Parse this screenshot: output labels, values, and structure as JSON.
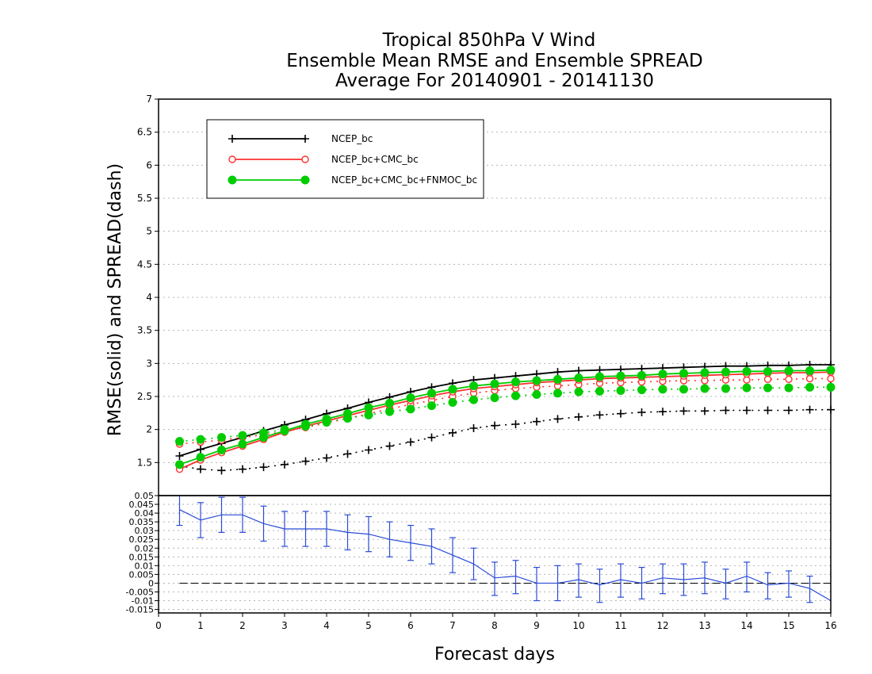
{
  "chart_data": [
    {
      "type": "line",
      "title": [
        "Tropical 850hPa V Wind",
        "Ensemble Mean RMSE and Ensemble SPREAD",
        "Average For 20140901 - 20141130"
      ],
      "ylabel": "RMSE(solid) and SPREAD(dash)",
      "ylim": [
        1.0,
        7.0
      ],
      "yticks": [
        "1.5",
        "2",
        "2.5",
        "3",
        "3.5",
        "4",
        "4.5",
        "5",
        "5.5",
        "6",
        "6.5",
        "7"
      ],
      "grid": true,
      "legend_position": "top-left",
      "x": [
        0.5,
        1,
        1.5,
        2,
        2.5,
        3,
        3.5,
        4,
        4.5,
        5,
        5.5,
        6,
        6.5,
        7,
        7.5,
        8,
        8.5,
        9,
        9.5,
        10,
        10.5,
        11,
        11.5,
        12,
        12.5,
        13,
        13.5,
        14,
        14.5,
        15,
        15.5,
        16
      ],
      "series": [
        {
          "name": "NCEP_bc",
          "color": "#000000",
          "marker": "plus",
          "rmse": [
            1.6,
            1.7,
            1.79,
            1.88,
            1.98,
            2.07,
            2.15,
            2.24,
            2.32,
            2.41,
            2.49,
            2.57,
            2.64,
            2.7,
            2.75,
            2.78,
            2.81,
            2.84,
            2.87,
            2.89,
            2.9,
            2.91,
            2.92,
            2.93,
            2.94,
            2.95,
            2.96,
            2.96,
            2.97,
            2.97,
            2.98,
            2.98
          ],
          "spread": [
            1.45,
            1.4,
            1.38,
            1.4,
            1.43,
            1.47,
            1.52,
            1.57,
            1.63,
            1.69,
            1.75,
            1.81,
            1.88,
            1.95,
            2.02,
            2.06,
            2.08,
            2.12,
            2.16,
            2.19,
            2.22,
            2.24,
            2.26,
            2.27,
            2.28,
            2.28,
            2.29,
            2.29,
            2.29,
            2.29,
            2.3,
            2.3
          ]
        },
        {
          "name": "NCEP_bc+CMC_bc",
          "color": "#ff3030",
          "marker": "circle-open",
          "rmse": [
            1.4,
            1.54,
            1.65,
            1.75,
            1.85,
            1.96,
            2.05,
            2.13,
            2.21,
            2.29,
            2.37,
            2.44,
            2.51,
            2.57,
            2.62,
            2.65,
            2.68,
            2.71,
            2.73,
            2.75,
            2.77,
            2.78,
            2.79,
            2.8,
            2.81,
            2.82,
            2.83,
            2.84,
            2.85,
            2.86,
            2.86,
            2.87
          ],
          "spread": [
            1.78,
            1.81,
            1.84,
            1.88,
            1.92,
            1.97,
            2.03,
            2.1,
            2.17,
            2.24,
            2.31,
            2.38,
            2.44,
            2.5,
            2.55,
            2.59,
            2.62,
            2.64,
            2.66,
            2.68,
            2.7,
            2.71,
            2.72,
            2.73,
            2.74,
            2.74,
            2.75,
            2.75,
            2.76,
            2.76,
            2.77,
            2.77
          ]
        },
        {
          "name": "NCEP_bc+CMC_bc+FNMOC_bc",
          "color": "#00cc00",
          "marker": "circle-filled",
          "rmse": [
            1.47,
            1.58,
            1.69,
            1.78,
            1.88,
            1.98,
            2.08,
            2.16,
            2.24,
            2.33,
            2.4,
            2.48,
            2.55,
            2.61,
            2.66,
            2.69,
            2.72,
            2.74,
            2.76,
            2.78,
            2.8,
            2.81,
            2.82,
            2.84,
            2.85,
            2.86,
            2.87,
            2.88,
            2.88,
            2.89,
            2.89,
            2.9
          ],
          "spread": [
            1.82,
            1.85,
            1.88,
            1.91,
            1.95,
            2.0,
            2.05,
            2.11,
            2.17,
            2.22,
            2.27,
            2.31,
            2.36,
            2.41,
            2.45,
            2.48,
            2.51,
            2.53,
            2.55,
            2.57,
            2.58,
            2.59,
            2.6,
            2.61,
            2.61,
            2.62,
            2.62,
            2.63,
            2.63,
            2.63,
            2.64,
            2.64
          ]
        }
      ]
    },
    {
      "type": "line",
      "ylim": [
        -0.017,
        0.05
      ],
      "yticks": [
        "-0.015",
        "-0.01",
        "-0.005",
        "0",
        "0.005",
        "0.01",
        "0.015",
        "0.02",
        "0.025",
        "0.03",
        "0.035",
        "0.04",
        "0.045",
        "0.05"
      ],
      "xlabel": "Forecast days",
      "xlim": [
        0,
        16
      ],
      "xticks": [
        "0",
        "1",
        "2",
        "3",
        "4",
        "5",
        "6",
        "7",
        "8",
        "9",
        "10",
        "11",
        "12",
        "13",
        "14",
        "15",
        "16"
      ],
      "grid": true,
      "reference_line": 0,
      "series": [
        {
          "color": "#2a4bd7",
          "x": [
            0.5,
            1,
            1.5,
            2,
            2.5,
            3,
            3.5,
            4,
            4.5,
            5,
            5.5,
            6,
            6.5,
            7,
            7.5,
            8,
            8.5,
            9,
            9.5,
            10,
            10.5,
            11,
            11.5,
            12,
            12.5,
            13,
            13.5,
            14,
            14.5,
            15,
            15.5,
            16
          ],
          "values": [
            0.042,
            0.036,
            0.039,
            0.039,
            0.034,
            0.031,
            0.031,
            0.031,
            0.029,
            0.028,
            0.025,
            0.023,
            0.021,
            0.016,
            0.011,
            0.003,
            0.004,
            0.0,
            0.0,
            0.002,
            -0.001,
            0.002,
            0.0,
            0.003,
            0.002,
            0.003,
            0.0,
            0.004,
            -0.001,
            0.0,
            -0.003,
            -0.01
          ],
          "error_low": [
            0.033,
            0.026,
            0.029,
            0.029,
            0.024,
            0.021,
            0.021,
            0.021,
            0.019,
            0.018,
            0.015,
            0.013,
            0.011,
            0.006,
            0.002,
            -0.007,
            -0.006,
            -0.01,
            -0.01,
            -0.008,
            -0.011,
            -0.008,
            -0.009,
            -0.006,
            -0.007,
            -0.006,
            -0.009,
            -0.005,
            -0.009,
            -0.008,
            -0.011,
            null
          ],
          "error_high": [
            0.051,
            0.046,
            0.049,
            0.049,
            0.044,
            0.041,
            0.041,
            0.041,
            0.039,
            0.038,
            0.035,
            0.033,
            0.031,
            0.026,
            0.02,
            0.012,
            0.013,
            0.009,
            0.01,
            0.011,
            0.008,
            0.011,
            0.009,
            0.011,
            0.011,
            0.012,
            0.008,
            0.012,
            0.006,
            0.007,
            0.004,
            null
          ]
        }
      ]
    }
  ]
}
